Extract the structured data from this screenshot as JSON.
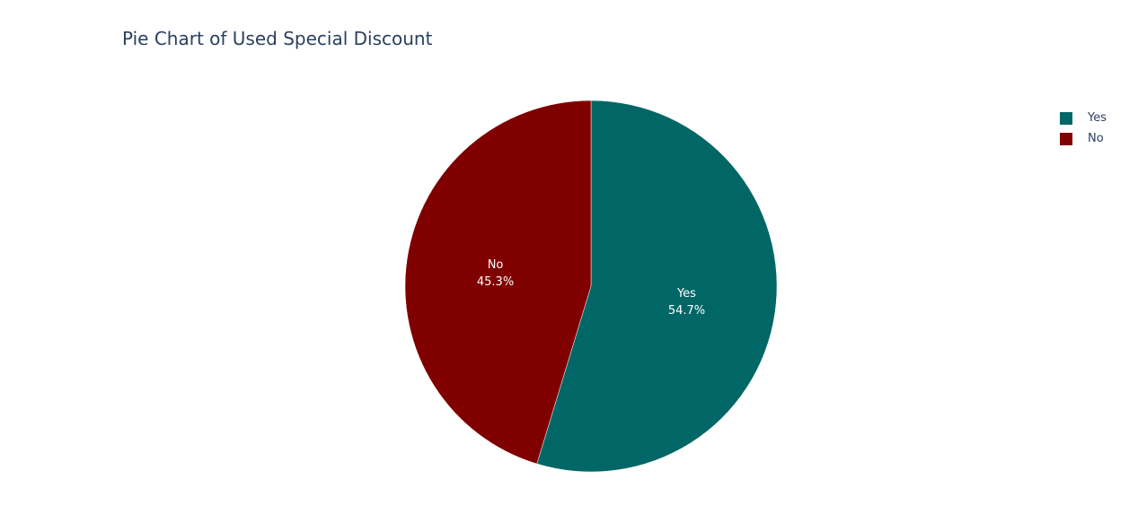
{
  "chart_data": {
    "type": "pie",
    "title": "Pie Chart of Used Special Discount",
    "slices": [
      {
        "label": "Yes",
        "percent": 54.7,
        "percent_text": "54.7%",
        "color": "#006666"
      },
      {
        "label": "No",
        "percent": 45.3,
        "percent_text": "45.3%",
        "color": "#800000"
      }
    ],
    "legend_position": "top-right",
    "text_color": "#2a3f5f"
  }
}
